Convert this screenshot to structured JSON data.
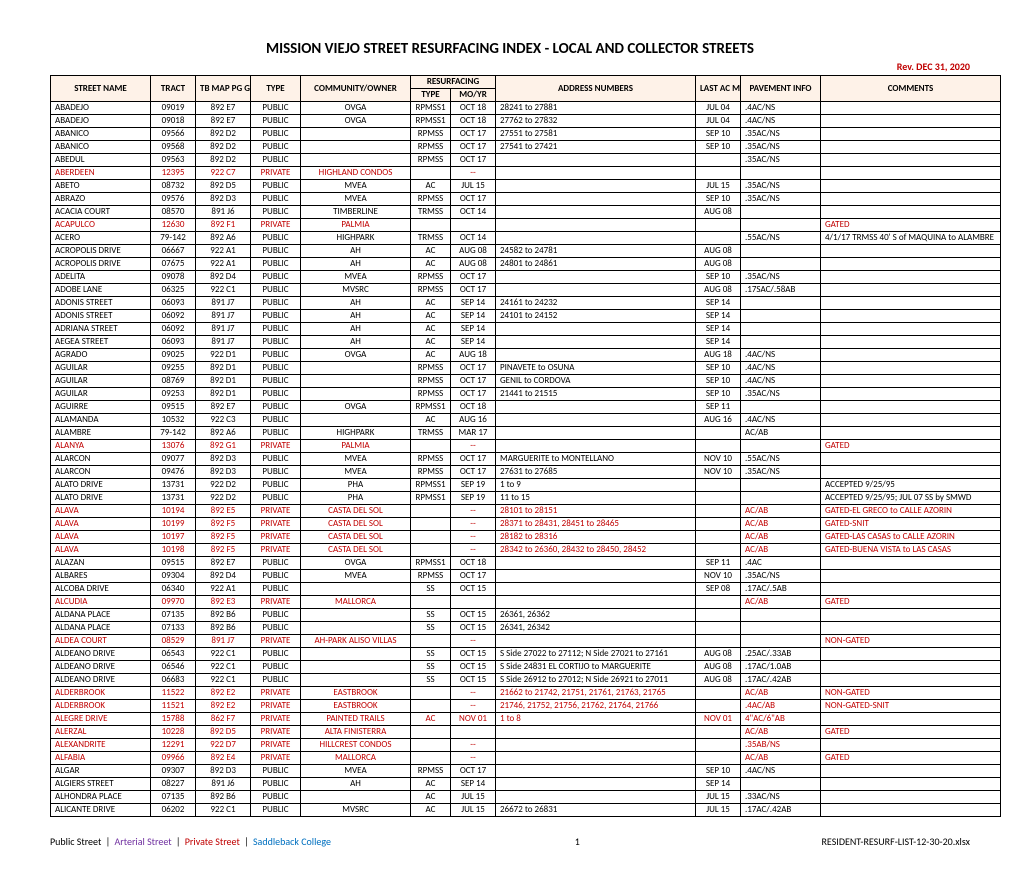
{
  "title": "MISSION VIEJO STREET RESURFACING INDEX - LOCAL AND COLLECTOR STREETS",
  "revision": "Rev. DEC 31, 2020",
  "headers": {
    "street": "STREET NAME",
    "tract": "TRACT",
    "tbmap": "TB MAP PG GRID",
    "type": "TYPE",
    "community": "COMMUNITY/OWNER",
    "resurf": "RESURFACING",
    "rtype": "TYPE",
    "rmoyr": "MO/YR",
    "address": "ADDRESS NUMBERS",
    "lastac": "LAST AC MO/YR",
    "pavement": "PAVEMENT INFO",
    "comments": "COMMENTS"
  },
  "rows": [
    {
      "street": "ABADEJO",
      "tract": "09019",
      "tbmap": "892 E7",
      "type": "PUBLIC",
      "comm": "OVGA",
      "rtype": "RPMSS1",
      "rmoyr": "OCT 18",
      "addr": "28241 to 27881",
      "lastac": "JUL 04",
      "pave": ".4AC/NS",
      "comment": "",
      "cls": ""
    },
    {
      "street": "ABADEJO",
      "tract": "09018",
      "tbmap": "892 E7",
      "type": "PUBLIC",
      "comm": "OVGA",
      "rtype": "RPMSS1",
      "rmoyr": "OCT 18",
      "addr": "27762 to 27832",
      "lastac": "JUL 04",
      "pave": ".4AC/NS",
      "comment": "",
      "cls": ""
    },
    {
      "street": "ABANICO",
      "tract": "09566",
      "tbmap": "892 D2",
      "type": "PUBLIC",
      "comm": "",
      "rtype": "RPMSS",
      "rmoyr": "OCT 17",
      "addr": "27551 to 27581",
      "lastac": "SEP 10",
      "pave": ".35AC/NS",
      "comment": "",
      "cls": ""
    },
    {
      "street": "ABANICO",
      "tract": "09568",
      "tbmap": "892 D2",
      "type": "PUBLIC",
      "comm": "",
      "rtype": "RPMSS",
      "rmoyr": "OCT 17",
      "addr": "27541 to 27421",
      "lastac": "SEP 10",
      "pave": ".35AC/NS",
      "comment": "",
      "cls": ""
    },
    {
      "street": "ABEDUL",
      "tract": "09563",
      "tbmap": "892 D2",
      "type": "PUBLIC",
      "comm": "",
      "rtype": "RPMSS",
      "rmoyr": "OCT 17",
      "addr": "",
      "lastac": "",
      "pave": ".35AC/NS",
      "comment": "",
      "cls": ""
    },
    {
      "street": "ABERDEEN",
      "tract": "12395",
      "tbmap": "922 C7",
      "type": "PRIVATE",
      "comm": "HIGHLAND CONDOS",
      "rtype": "",
      "rmoyr": "--",
      "addr": "",
      "lastac": "",
      "pave": "",
      "comment": "",
      "cls": "red"
    },
    {
      "street": "ABETO",
      "tract": "08732",
      "tbmap": "892 D5",
      "type": "PUBLIC",
      "comm": "MVEA",
      "rtype": "AC",
      "rmoyr": "JUL 15",
      "addr": "",
      "lastac": "JUL 15",
      "pave": ".35AC/NS",
      "comment": "",
      "cls": ""
    },
    {
      "street": "ABRAZO",
      "tract": "09576",
      "tbmap": "892 D3",
      "type": "PUBLIC",
      "comm": "MVEA",
      "rtype": "RPMSS",
      "rmoyr": "OCT 17",
      "addr": "",
      "lastac": "SEP 10",
      "pave": ".35AC/NS",
      "comment": "",
      "cls": ""
    },
    {
      "street": "ACACIA COURT",
      "tract": "08570",
      "tbmap": "891 J6",
      "type": "PUBLIC",
      "comm": "TIMBERLINE",
      "rtype": "TRMSS",
      "rmoyr": "OCT 14",
      "addr": "",
      "lastac": "AUG 08",
      "pave": "",
      "comment": "",
      "cls": ""
    },
    {
      "street": "ACAPULCO",
      "tract": "12630",
      "tbmap": "892 F1",
      "type": "PRIVATE",
      "comm": "PALMIA",
      "rtype": "",
      "rmoyr": "",
      "addr": "",
      "lastac": "",
      "pave": "",
      "comment": "GATED",
      "cls": "red"
    },
    {
      "street": "ACERO",
      "tract": "79-142",
      "tbmap": "892 A6",
      "type": "PUBLIC",
      "comm": "HIGHPARK",
      "rtype": "TRMSS",
      "rmoyr": "OCT 14",
      "addr": "",
      "lastac": "",
      "pave": ".55AC/NS",
      "comment": "4/1/17 TRMSS 40' S of MAQUINA to ALAMBRE",
      "cls": ""
    },
    {
      "street": "ACROPOLIS DRIVE",
      "tract": "06667",
      "tbmap": "922 A1",
      "type": "PUBLIC",
      "comm": "AH",
      "rtype": "AC",
      "rmoyr": "AUG 08",
      "addr": "24582 to 24781",
      "lastac": "AUG 08",
      "pave": "",
      "comment": "",
      "cls": ""
    },
    {
      "street": "ACROPOLIS DRIVE",
      "tract": "07675",
      "tbmap": "922 A1",
      "type": "PUBLIC",
      "comm": "AH",
      "rtype": "AC",
      "rmoyr": "AUG 08",
      "addr": "24801 to 24861",
      "lastac": "AUG 08",
      "pave": "",
      "comment": "",
      "cls": ""
    },
    {
      "street": "ADELITA",
      "tract": "09078",
      "tbmap": "892 D4",
      "type": "PUBLIC",
      "comm": "MVEA",
      "rtype": "RPMSS",
      "rmoyr": "OCT 17",
      "addr": "",
      "lastac": "SEP 10",
      "pave": ".35AC/NS",
      "comment": "",
      "cls": ""
    },
    {
      "street": "ADOBE LANE",
      "tract": "06325",
      "tbmap": "922 C1",
      "type": "PUBLIC",
      "comm": "MVSRC",
      "rtype": "RPMSS",
      "rmoyr": "OCT 17",
      "addr": "",
      "lastac": "AUG 08",
      "pave": ".17SAC/.58AB",
      "comment": "",
      "cls": ""
    },
    {
      "street": "ADONIS STREET",
      "tract": "06093",
      "tbmap": "891 J7",
      "type": "PUBLIC",
      "comm": "AH",
      "rtype": "AC",
      "rmoyr": "SEP 14",
      "addr": "24161 to 24232",
      "lastac": "SEP 14",
      "pave": "",
      "comment": "",
      "cls": ""
    },
    {
      "street": "ADONIS STREET",
      "tract": "06092",
      "tbmap": "891 J7",
      "type": "PUBLIC",
      "comm": "AH",
      "rtype": "AC",
      "rmoyr": "SEP 14",
      "addr": "24101 to 24152",
      "lastac": "SEP 14",
      "pave": "",
      "comment": "",
      "cls": ""
    },
    {
      "street": "ADRIANA STREET",
      "tract": "06092",
      "tbmap": "891 J7",
      "type": "PUBLIC",
      "comm": "AH",
      "rtype": "AC",
      "rmoyr": "SEP 14",
      "addr": "",
      "lastac": "SEP 14",
      "pave": "",
      "comment": "",
      "cls": ""
    },
    {
      "street": "AEGEA STREET",
      "tract": "06093",
      "tbmap": "891 J7",
      "type": "PUBLIC",
      "comm": "AH",
      "rtype": "AC",
      "rmoyr": "SEP 14",
      "addr": "",
      "lastac": "SEP 14",
      "pave": "",
      "comment": "",
      "cls": ""
    },
    {
      "street": "AGRADO",
      "tract": "09025",
      "tbmap": "922 D1",
      "type": "PUBLIC",
      "comm": "OVGA",
      "rtype": "AC",
      "rmoyr": "AUG 18",
      "addr": "",
      "lastac": "AUG 18",
      "pave": ".4AC/NS",
      "comment": "",
      "cls": ""
    },
    {
      "street": "AGUILAR",
      "tract": "09255",
      "tbmap": "892 D1",
      "type": "PUBLIC",
      "comm": "",
      "rtype": "RPMSS",
      "rmoyr": "OCT 17",
      "addr": "PINAVETE to OSUNA",
      "lastac": "SEP 10",
      "pave": ".4AC/NS",
      "comment": "",
      "cls": ""
    },
    {
      "street": "AGUILAR",
      "tract": "08769",
      "tbmap": "892 D1",
      "type": "PUBLIC",
      "comm": "",
      "rtype": "RPMSS",
      "rmoyr": "OCT 17",
      "addr": "GENIL to CORDOVA",
      "lastac": "SEP 10",
      "pave": ".4AC/NS",
      "comment": "",
      "cls": ""
    },
    {
      "street": "AGUILAR",
      "tract": "09253",
      "tbmap": "892 D1",
      "type": "PUBLIC",
      "comm": "",
      "rtype": "RPMSS",
      "rmoyr": "OCT 17",
      "addr": "21441 to 21515",
      "lastac": "SEP 10",
      "pave": ".35AC/NS",
      "comment": "",
      "cls": ""
    },
    {
      "street": "AGUIRRE",
      "tract": "09515",
      "tbmap": "892 E7",
      "type": "PUBLIC",
      "comm": "OVGA",
      "rtype": "RPMSS1",
      "rmoyr": "OCT 18",
      "addr": "",
      "lastac": "SEP 11",
      "pave": "",
      "comment": "",
      "cls": ""
    },
    {
      "street": "ALAMANDA",
      "tract": "10532",
      "tbmap": "922 C3",
      "type": "PUBLIC",
      "comm": "",
      "rtype": "AC",
      "rmoyr": "AUG 16",
      "addr": "",
      "lastac": "AUG 16",
      "pave": ".4AC/NS",
      "comment": "",
      "cls": ""
    },
    {
      "street": "ALAMBRE",
      "tract": "79-142",
      "tbmap": "892 A6",
      "type": "PUBLIC",
      "comm": "HIGHPARK",
      "rtype": "TRMSS",
      "rmoyr": "MAR 17",
      "addr": "",
      "lastac": "",
      "pave": "AC/AB",
      "comment": "",
      "cls": ""
    },
    {
      "street": "ALANYA",
      "tract": "13076",
      "tbmap": "892 G1",
      "type": "PRIVATE",
      "comm": "PALMIA",
      "rtype": "",
      "rmoyr": "--",
      "addr": "",
      "lastac": "",
      "pave": "",
      "comment": "GATED",
      "cls": "red"
    },
    {
      "street": "ALARCON",
      "tract": "09077",
      "tbmap": "892 D3",
      "type": "PUBLIC",
      "comm": "MVEA",
      "rtype": "RPMSS",
      "rmoyr": "OCT 17",
      "addr": "MARGUERITE to MONTELLANO",
      "lastac": "NOV 10",
      "pave": ".55AC/NS",
      "comment": "",
      "cls": ""
    },
    {
      "street": "ALARCON",
      "tract": "09476",
      "tbmap": "892 D3",
      "type": "PUBLIC",
      "comm": "MVEA",
      "rtype": "RPMSS",
      "rmoyr": "OCT 17",
      "addr": "27631 to 27685",
      "lastac": "NOV 10",
      "pave": ".35AC/NS",
      "comment": "",
      "cls": ""
    },
    {
      "street": "ALATO DRIVE",
      "tract": "13731",
      "tbmap": "922 D2",
      "type": "PUBLIC",
      "comm": "PHA",
      "rtype": "RPMSS1",
      "rmoyr": "SEP 19",
      "addr": "1 to 9",
      "lastac": "",
      "pave": "",
      "comment": "ACCEPTED 9/25/95",
      "cls": ""
    },
    {
      "street": "ALATO DRIVE",
      "tract": "13731",
      "tbmap": "922 D2",
      "type": "PUBLIC",
      "comm": "PHA",
      "rtype": "RPMSS1",
      "rmoyr": "SEP 19",
      "addr": "11 to 15",
      "lastac": "",
      "pave": "",
      "comment": "ACCEPTED 9/25/95; JUL 07 SS by SMWD",
      "cls": ""
    },
    {
      "street": "ALAVA",
      "tract": "10194",
      "tbmap": "892 E5",
      "type": "PRIVATE",
      "comm": "CASTA DEL SOL",
      "rtype": "",
      "rmoyr": "--",
      "addr": "28101 to 28151",
      "lastac": "",
      "pave": "AC/AB",
      "comment": "GATED-EL GRECO to CALLE AZORIN",
      "cls": "red"
    },
    {
      "street": "ALAVA",
      "tract": "10199",
      "tbmap": "892 F5",
      "type": "PRIVATE",
      "comm": "CASTA DEL SOL",
      "rtype": "",
      "rmoyr": "--",
      "addr": "28371 to 28431, 28451 to 28465",
      "lastac": "",
      "pave": "AC/AB",
      "comment": "GATED-SNIT",
      "cls": "red"
    },
    {
      "street": "ALAVA",
      "tract": "10197",
      "tbmap": "892 F5",
      "type": "PRIVATE",
      "comm": "CASTA DEL SOL",
      "rtype": "",
      "rmoyr": "--",
      "addr": "28182 to 28316",
      "lastac": "",
      "pave": "AC/AB",
      "comment": "GATED-LAS CASAS to CALLE AZORIN",
      "cls": "red"
    },
    {
      "street": "ALAVA",
      "tract": "10198",
      "tbmap": "892 F5",
      "type": "PRIVATE",
      "comm": "CASTA DEL SOL",
      "rtype": "",
      "rmoyr": "--",
      "addr": "28342 to 26360, 28432 to 28450, 28452",
      "lastac": "",
      "pave": "AC/AB",
      "comment": "GATED-BUENA VISTA to LAS CASAS",
      "cls": "red"
    },
    {
      "street": "ALAZAN",
      "tract": "09515",
      "tbmap": "892 E7",
      "type": "PUBLIC",
      "comm": "OVGA",
      "rtype": "RPMSS1",
      "rmoyr": "OCT 18",
      "addr": "",
      "lastac": "SEP 11",
      "pave": ".4AC",
      "comment": "",
      "cls": ""
    },
    {
      "street": "ALBARES",
      "tract": "09304",
      "tbmap": "892 D4",
      "type": "PUBLIC",
      "comm": "MVEA",
      "rtype": "RPMSS",
      "rmoyr": "OCT 17",
      "addr": "",
      "lastac": "NOV 10",
      "pave": ".35AC/NS",
      "comment": "",
      "cls": ""
    },
    {
      "street": "ALCOBA DRIVE",
      "tract": "06340",
      "tbmap": "922 A1",
      "type": "PUBLIC",
      "comm": "",
      "rtype": "SS",
      "rmoyr": "OCT 15",
      "addr": "",
      "lastac": "SEP 08",
      "pave": ".17AC/.5AB",
      "comment": "",
      "cls": ""
    },
    {
      "street": "ALCUDIA",
      "tract": "09970",
      "tbmap": "892 E3",
      "type": "PRIVATE",
      "comm": "MALLORCA",
      "rtype": "",
      "rmoyr": "",
      "addr": "",
      "lastac": "",
      "pave": "AC/AB",
      "comment": "GATED",
      "cls": "red"
    },
    {
      "street": "ALDANA PLACE",
      "tract": "07135",
      "tbmap": "892 B6",
      "type": "PUBLIC",
      "comm": "",
      "rtype": "SS",
      "rmoyr": "OCT 15",
      "addr": "26361, 26362",
      "lastac": "",
      "pave": "",
      "comment": "",
      "cls": ""
    },
    {
      "street": "ALDANA PLACE",
      "tract": "07133",
      "tbmap": "892 B6",
      "type": "PUBLIC",
      "comm": "",
      "rtype": "SS",
      "rmoyr": "OCT 15",
      "addr": "26341, 26342",
      "lastac": "",
      "pave": "",
      "comment": "",
      "cls": ""
    },
    {
      "street": "ALDEA COURT",
      "tract": "08529",
      "tbmap": "891 J7",
      "type": "PRIVATE",
      "comm": "AH-PARK ALISO VILLAS",
      "rtype": "",
      "rmoyr": "--",
      "addr": "",
      "lastac": "",
      "pave": "",
      "comment": "NON-GATED",
      "cls": "red"
    },
    {
      "street": "ALDEANO DRIVE",
      "tract": "06543",
      "tbmap": "922 C1",
      "type": "PUBLIC",
      "comm": "",
      "rtype": "SS",
      "rmoyr": "OCT 15",
      "addr": "S Side 27022 to 27112; N Side 27021 to 27161",
      "lastac": "AUG 08",
      "pave": ".25AC/.33AB",
      "comment": "",
      "cls": ""
    },
    {
      "street": "ALDEANO DRIVE",
      "tract": "06546",
      "tbmap": "922 C1",
      "type": "PUBLIC",
      "comm": "",
      "rtype": "SS",
      "rmoyr": "OCT 15",
      "addr": "S Side 24831 EL CORTIJO to MARGUERITE",
      "lastac": "AUG 08",
      "pave": ".17AC/1.0AB",
      "comment": "",
      "cls": ""
    },
    {
      "street": "ALDEANO DRIVE",
      "tract": "06683",
      "tbmap": "922 C1",
      "type": "PUBLIC",
      "comm": "",
      "rtype": "SS",
      "rmoyr": "OCT 15",
      "addr": "S Side 26912 to 27012; N Side 26921 to 27011",
      "lastac": "AUG 08",
      "pave": ".17AC/.42AB",
      "comment": "",
      "cls": ""
    },
    {
      "street": "ALDERBROOK",
      "tract": "11522",
      "tbmap": "892 E2",
      "type": "PRIVATE",
      "comm": "EASTBROOK",
      "rtype": "",
      "rmoyr": "--",
      "addr": "21662 to 21742, 21751, 21761, 21763, 21765",
      "lastac": "",
      "pave": "AC/AB",
      "comment": "NON-GATED",
      "cls": "red"
    },
    {
      "street": "ALDERBROOK",
      "tract": "11521",
      "tbmap": "892 E2",
      "type": "PRIVATE",
      "comm": "EASTBROOK",
      "rtype": "",
      "rmoyr": "--",
      "addr": "21746, 21752, 21756, 21762, 21764, 21766",
      "lastac": "",
      "pave": ".4AC/AB",
      "comment": "NON-GATED-SNIT",
      "cls": "red"
    },
    {
      "street": "ALEGRE DRIVE",
      "tract": "15788",
      "tbmap": "862 F7",
      "type": "PRIVATE",
      "comm": "PAINTED TRAILS",
      "rtype": "AC",
      "rmoyr": "NOV 01",
      "addr": "1 to 8",
      "lastac": "NOV 01",
      "pave": "4\"AC/6\"AB",
      "comment": "",
      "cls": "red"
    },
    {
      "street": "ALERZAL",
      "tract": "10228",
      "tbmap": "892 D5",
      "type": "PRIVATE",
      "comm": "ALTA FINISTERRA",
      "rtype": "",
      "rmoyr": "",
      "addr": "",
      "lastac": "",
      "pave": "AC/AB",
      "comment": "GATED",
      "cls": "red"
    },
    {
      "street": "ALEXANDRITE",
      "tract": "12291",
      "tbmap": "922 D7",
      "type": "PRIVATE",
      "comm": "HILLCREST CONDOS",
      "rtype": "",
      "rmoyr": "--",
      "addr": "",
      "lastac": "",
      "pave": ".35AB/NS",
      "comment": "",
      "cls": "red"
    },
    {
      "street": "ALFABIA",
      "tract": "09966",
      "tbmap": "892 E4",
      "type": "PRIVATE",
      "comm": "MALLORCA",
      "rtype": "",
      "rmoyr": "--",
      "addr": "",
      "lastac": "",
      "pave": "AC/AB",
      "comment": "GATED",
      "cls": "red"
    },
    {
      "street": "ALGAR",
      "tract": "09307",
      "tbmap": "892 D3",
      "type": "PUBLIC",
      "comm": "MVEA",
      "rtype": "RPMSS",
      "rmoyr": "OCT 17",
      "addr": "",
      "lastac": "SEP 10",
      "pave": ".4AC/NS",
      "comment": "",
      "cls": ""
    },
    {
      "street": "ALGIERS STREET",
      "tract": "08227",
      "tbmap": "891 J6",
      "type": "PUBLIC",
      "comm": "AH",
      "rtype": "AC",
      "rmoyr": "SEP 14",
      "addr": "",
      "lastac": "SEP 14",
      "pave": "",
      "comment": "",
      "cls": ""
    },
    {
      "street": "ALHONDRA PLACE",
      "tract": "07135",
      "tbmap": "892 B6",
      "type": "PUBLIC",
      "comm": "",
      "rtype": "AC",
      "rmoyr": "JUL 15",
      "addr": "",
      "lastac": "JUL 15",
      "pave": ".33AC/NS",
      "comment": "",
      "cls": ""
    },
    {
      "street": "ALICANTE DRIVE",
      "tract": "06202",
      "tbmap": "922 C1",
      "type": "PUBLIC",
      "comm": "MVSRC",
      "rtype": "AC",
      "rmoyr": "JUL 15",
      "addr": "26672 to 26831",
      "lastac": "JUL 15",
      "pave": ".17AC/.42AB",
      "comment": "",
      "cls": ""
    }
  ],
  "footer": {
    "legend_public": "Public Street",
    "legend_arterial": "Arterial Street",
    "legend_private": "Private Street",
    "legend_saddleback": "Saddleback College",
    "page": "1",
    "filename": "RESIDENT-RESURF-LIST-12-30-20.xlsx"
  }
}
